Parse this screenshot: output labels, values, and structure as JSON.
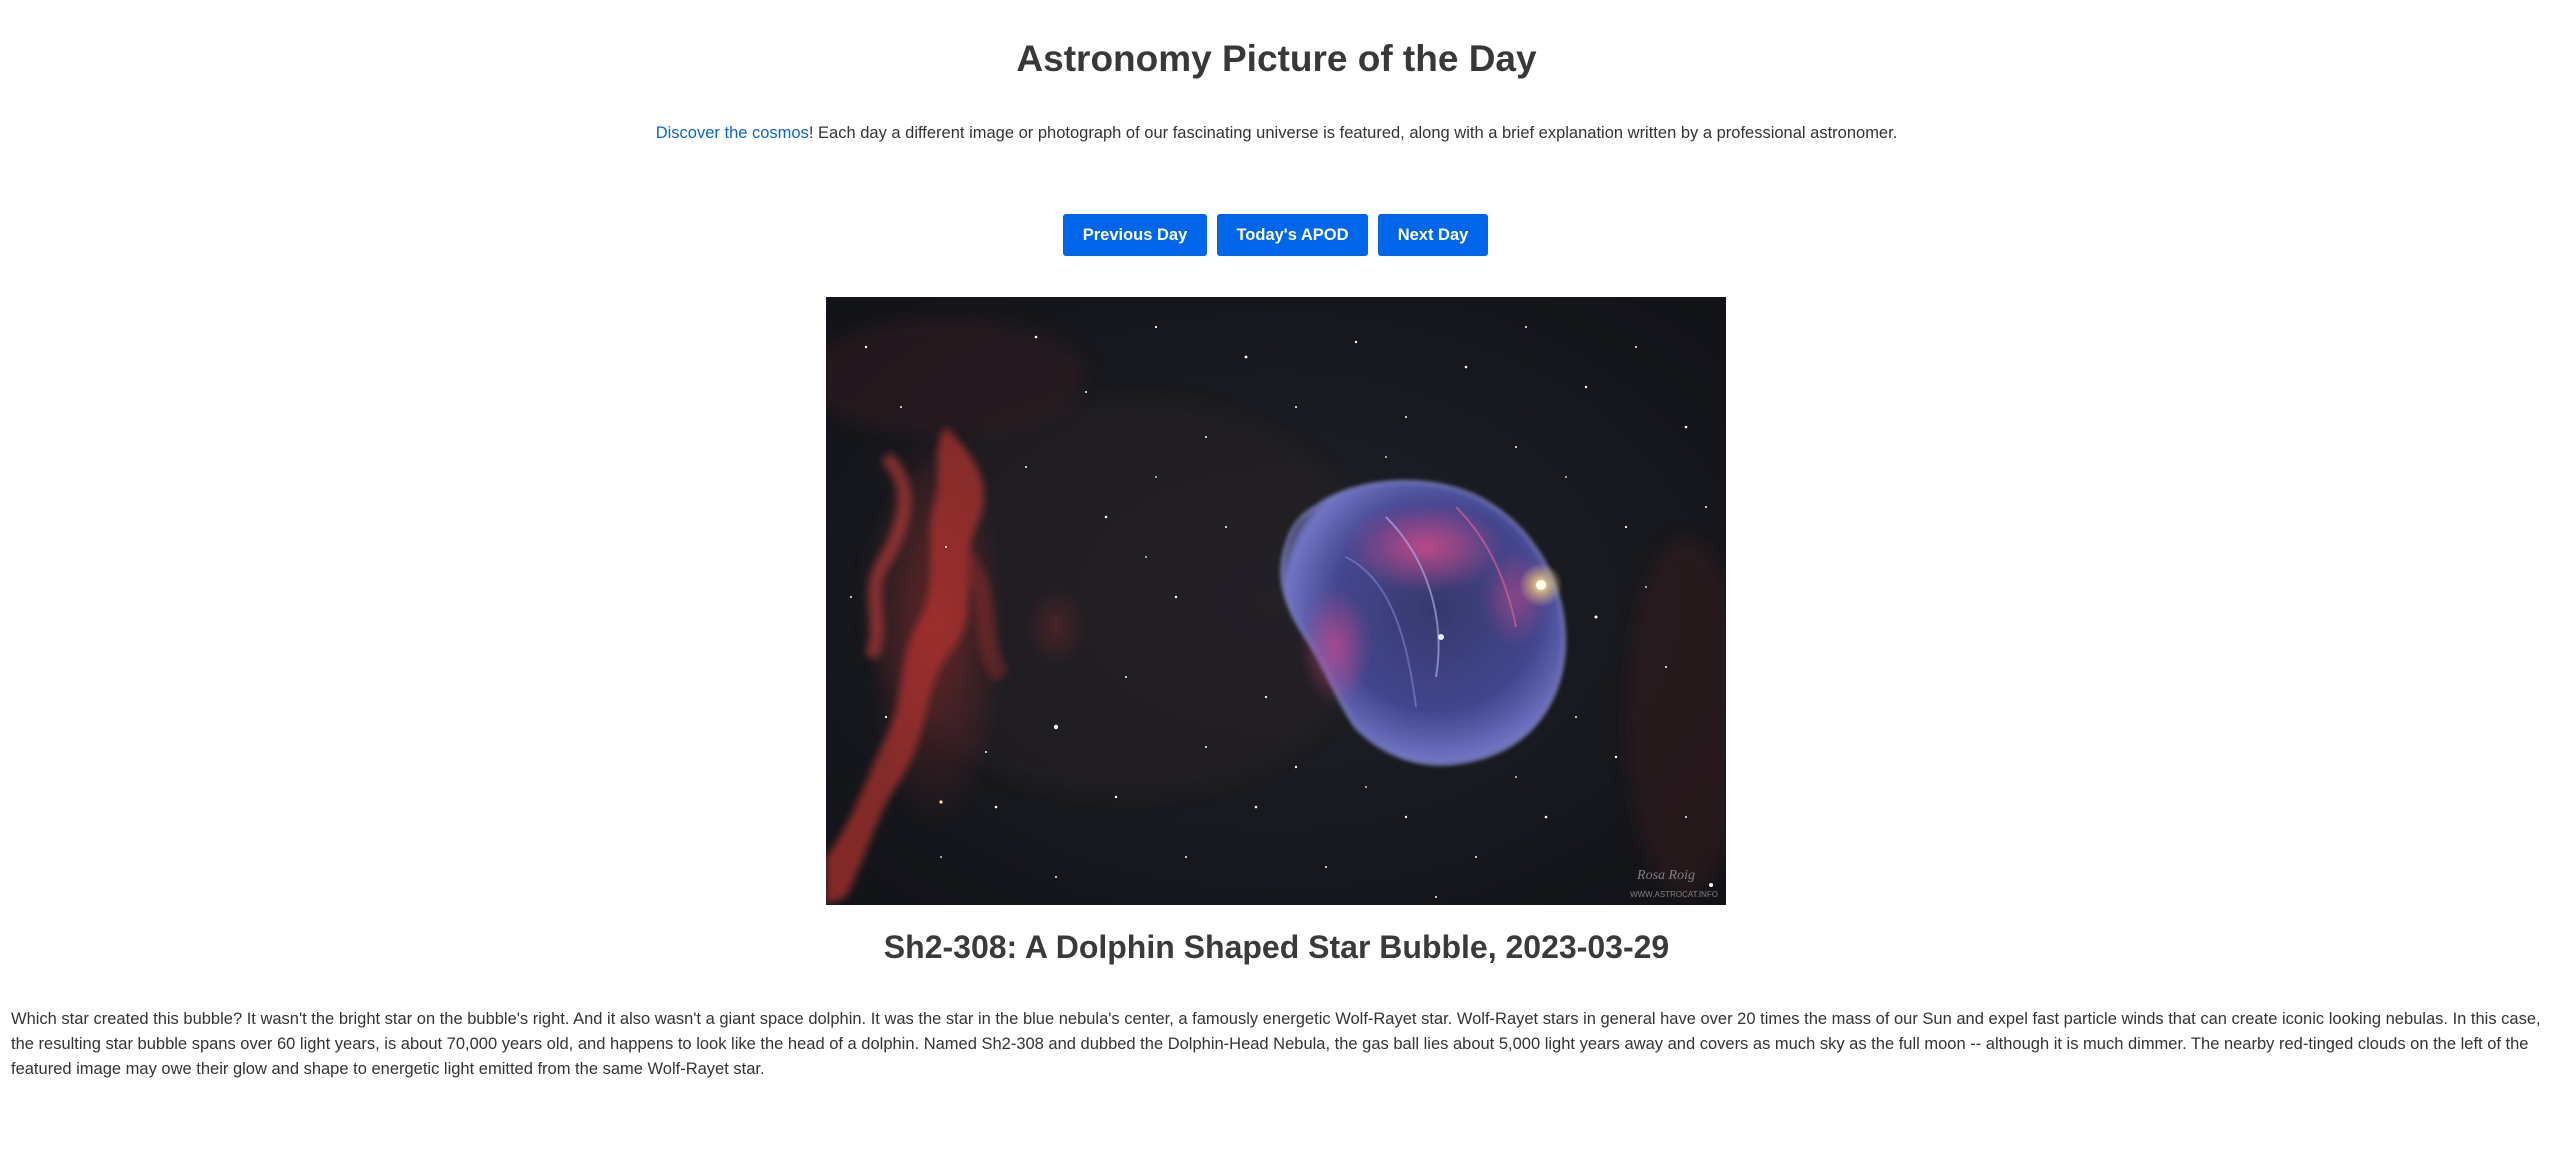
{
  "header": {
    "title": "Astronomy Picture of the Day"
  },
  "intro": {
    "link_text": "Discover the cosmos",
    "text": "! Each day a different image or photograph of our fascinating universe is featured, along with a brief explanation written by a professional astronomer."
  },
  "nav": {
    "previous_label": "Previous Day",
    "today_label": "Today's APOD",
    "next_label": "Next Day"
  },
  "apod": {
    "title": "Sh2-308: A Dolphin Shaped Star Bubble, 2023-03-29",
    "explanation": "Which star created this bubble? It wasn't the bright star on the bubble's right. And it also wasn't a giant space dolphin. It was the star in the blue nebula's center, a famously energetic Wolf-Rayet star. Wolf-Rayet stars in general have over 20 times the mass of our Sun and expel fast particle winds that can create iconic looking nebulas. In this case, the resulting star bubble spans over 60 light years, is about 70,000 years old, and happens to look like the head of a dolphin. Named Sh2-308 and dubbed the Dolphin-Head Nebula, the gas ball lies about 5,000 light years away and covers as much sky as the full moon -- although it is much dimmer. The nearby red-tinged clouds on the left of the featured image may owe their glow and shape to energetic light emitted from the same Wolf-Rayet star.",
    "image_watermark": "WWW.ASTROCAT.INFO"
  },
  "colors": {
    "button_bg": "#0066e9",
    "link": "#0a63d6",
    "text": "#333333"
  }
}
